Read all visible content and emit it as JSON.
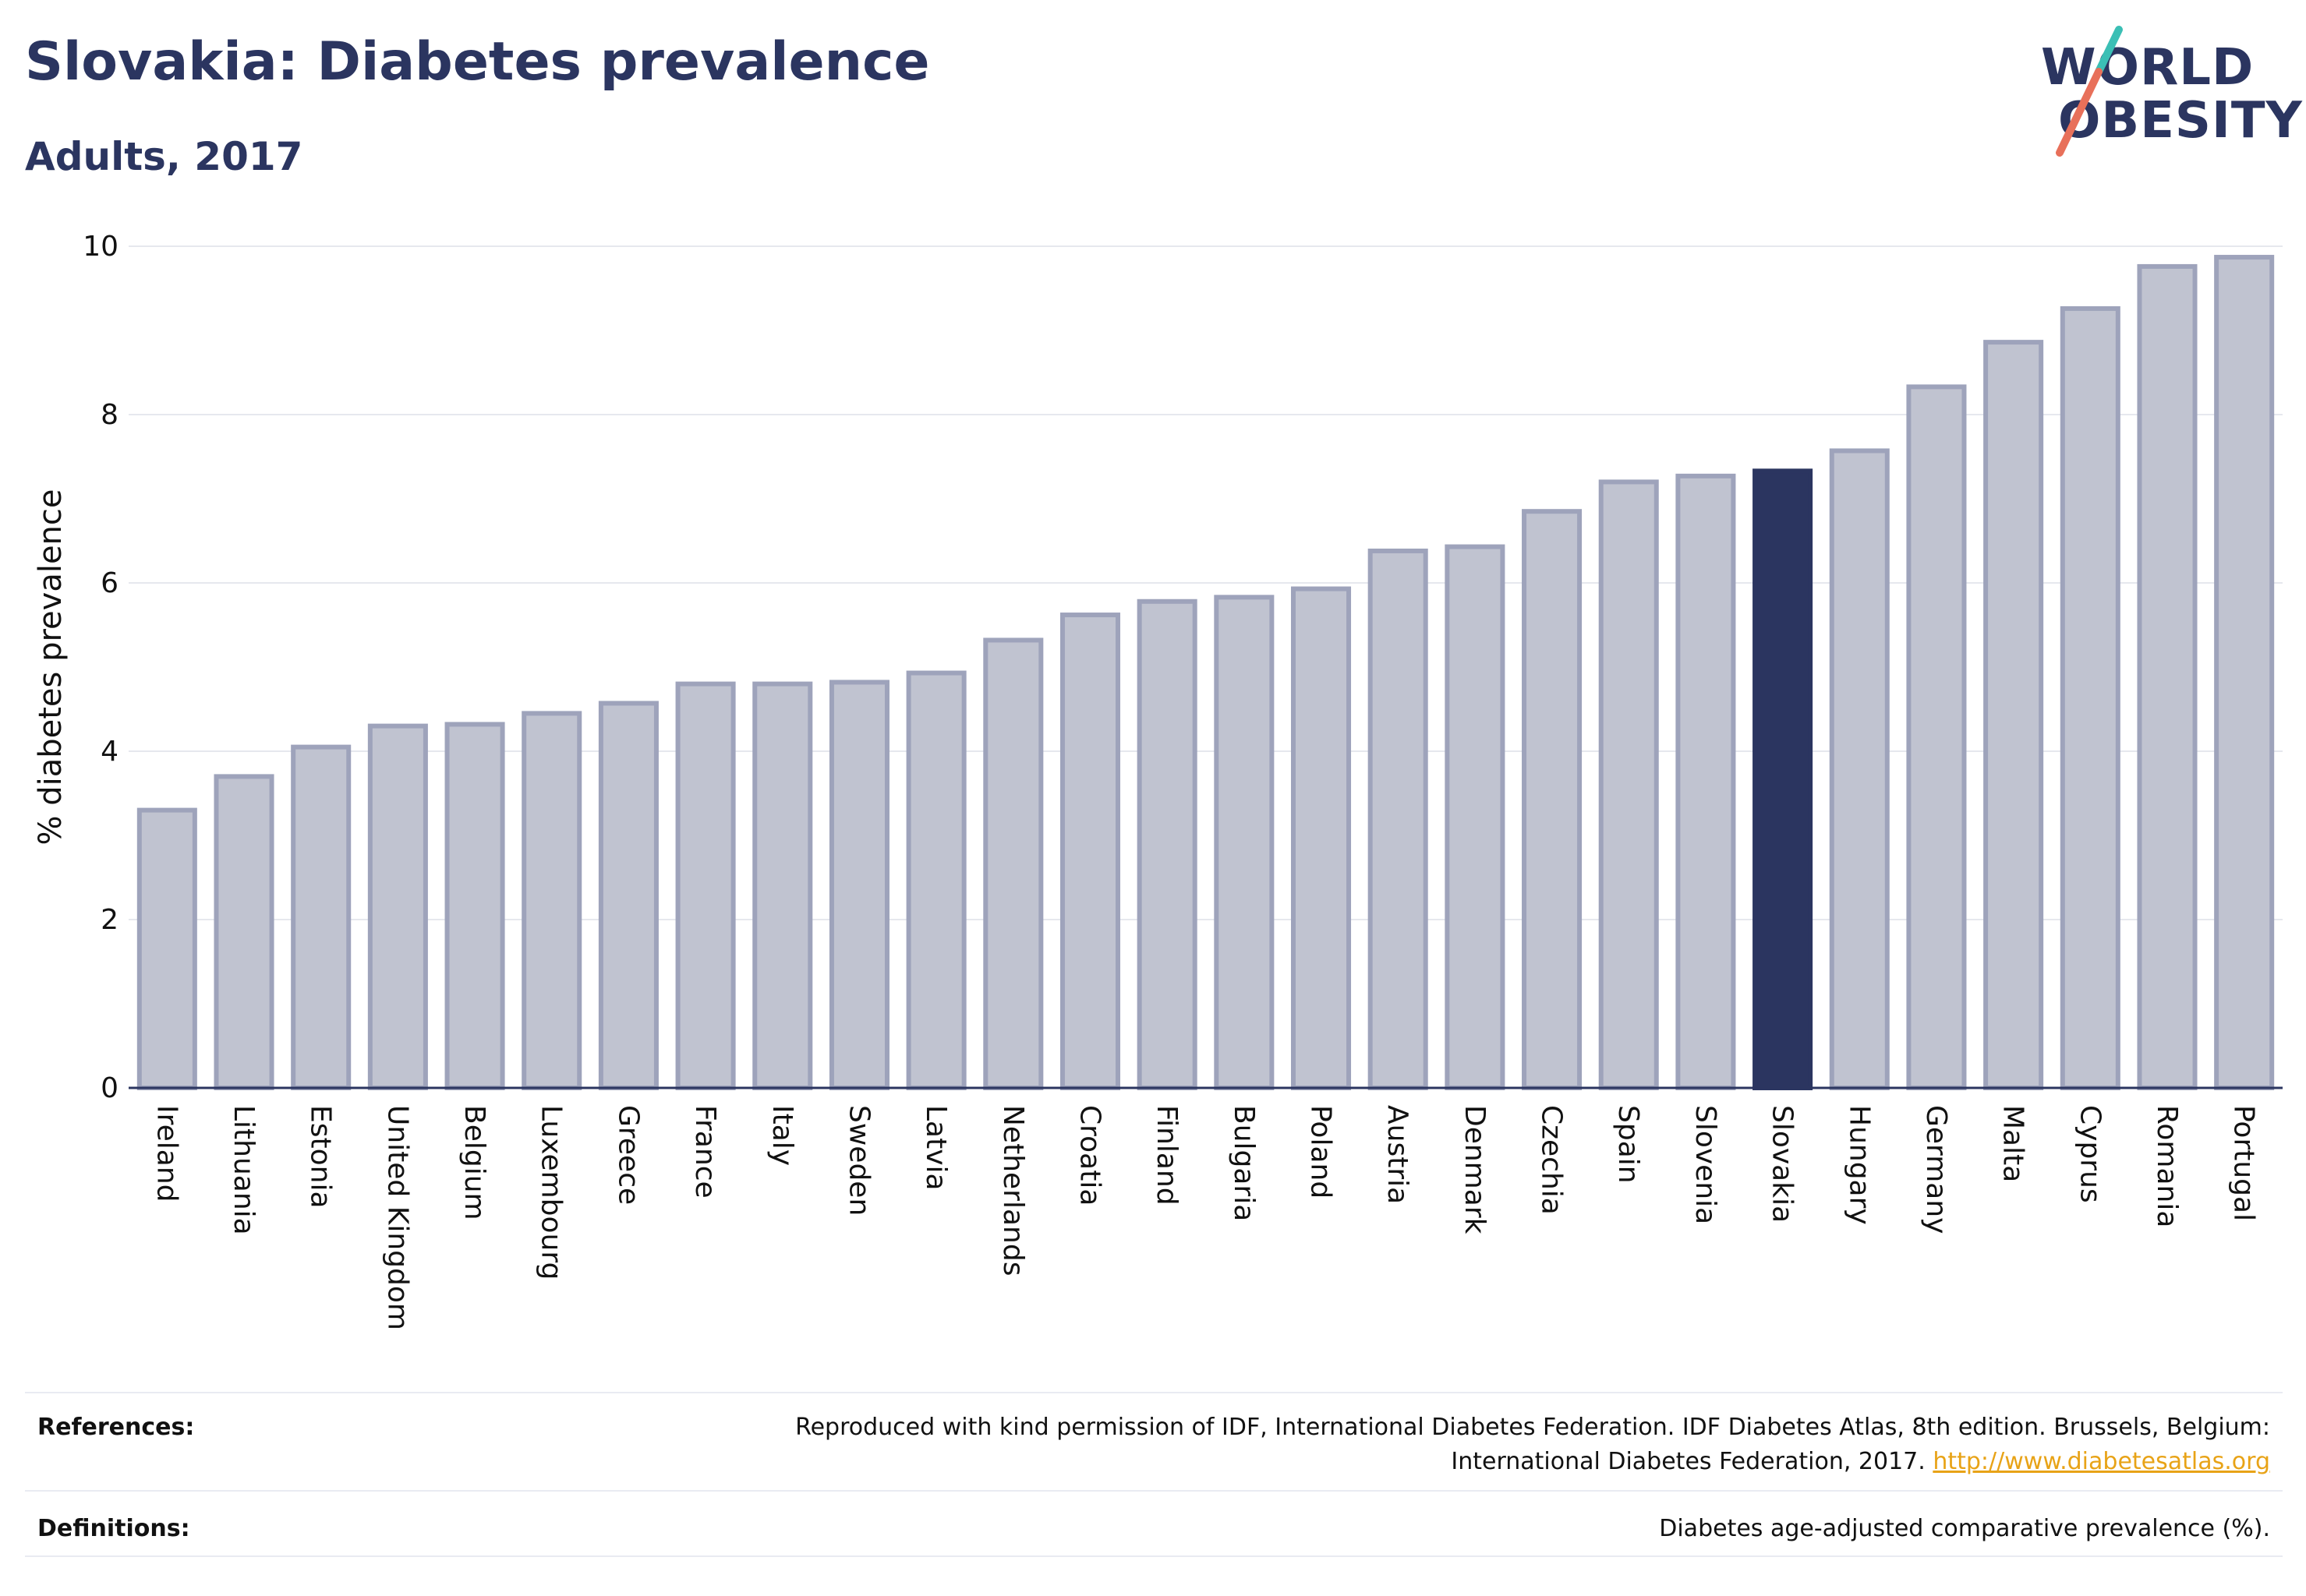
{
  "header": {
    "title": "Slovakia: Diabetes prevalence",
    "subtitle": "Adults, 2017"
  },
  "logo": {
    "line1": "WORLD",
    "line2": "OBESITY",
    "slash_color_top": "#3bbfb5",
    "slash_color_bottom": "#e8705a"
  },
  "colors": {
    "bar_fill": "#c0c3d0",
    "bar_stroke": "#9ea3bb",
    "highlight": "#2b3560",
    "grid": "#e6e8ee",
    "axis": "#2b3560"
  },
  "chart_data": {
    "type": "bar",
    "ylabel": "% diabetes prevalence",
    "xlabel": "",
    "ylim": [
      0,
      10
    ],
    "yticks": [
      0,
      2,
      4,
      6,
      8,
      10
    ],
    "grid": true,
    "highlight": "Slovakia",
    "categories": [
      "Ireland",
      "Lithuania",
      "Estonia",
      "United Kingdom",
      "Belgium",
      "Luxembourg",
      "Greece",
      "France",
      "Italy",
      "Sweden",
      "Latvia",
      "Netherlands",
      "Croatia",
      "Finland",
      "Bulgaria",
      "Poland",
      "Austria",
      "Denmark",
      "Czechia",
      "Spain",
      "Slovenia",
      "Slovakia",
      "Hungary",
      "Germany",
      "Malta",
      "Cyprus",
      "Romania",
      "Portugal"
    ],
    "values": [
      3.3,
      3.7,
      4.05,
      4.3,
      4.32,
      4.45,
      4.57,
      4.8,
      4.8,
      4.82,
      4.93,
      5.32,
      5.62,
      5.78,
      5.83,
      5.93,
      6.38,
      6.43,
      6.85,
      7.2,
      7.27,
      7.33,
      7.57,
      8.33,
      8.86,
      9.26,
      9.76,
      9.87
    ]
  },
  "footer": {
    "references_label": "References:",
    "references_line1": "Reproduced with kind permission of IDF, International Diabetes Federation. IDF Diabetes Atlas, 8th edition. Brussels, Belgium:",
    "references_line2": "International Diabetes Federation, 2017.",
    "references_link": "http://www.diabetesatlas.org",
    "definitions_label": "Definitions:",
    "definitions_text": "Diabetes age-adjusted comparative prevalence (%)."
  }
}
